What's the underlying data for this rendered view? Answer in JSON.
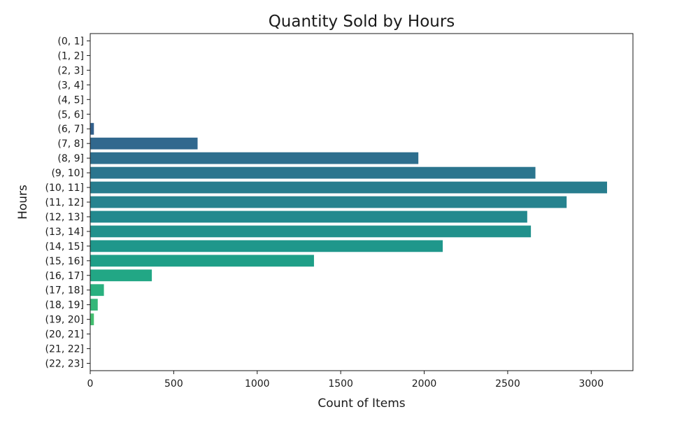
{
  "chart_data": {
    "type": "bar",
    "orientation": "horizontal",
    "title": "Quantity Sold by Hours",
    "xlabel": "Count of Items",
    "ylabel": "Hours",
    "xlim": [
      0,
      3250
    ],
    "xticks": [
      0,
      500,
      1000,
      1500,
      2000,
      2500,
      3000
    ],
    "grid": false,
    "categories": [
      "(0, 1]",
      "(1, 2]",
      "(2, 3]",
      "(3, 4]",
      "(4, 5]",
      "(5, 6]",
      "(6, 7]",
      "(7, 8]",
      "(8, 9]",
      "(9, 10]",
      "(10, 11]",
      "(11, 12]",
      "(12, 13]",
      "(13, 14]",
      "(14, 15]",
      "(15, 16]",
      "(16, 17]",
      "(17, 18]",
      "(18, 19]",
      "(19, 20]",
      "(20, 21]",
      "(21, 22]",
      "(22, 23]"
    ],
    "values": [
      0,
      0,
      0,
      0,
      0,
      0,
      22,
      643,
      1965,
      2666,
      3095,
      2853,
      2617,
      2639,
      2111,
      1340,
      369,
      82,
      45,
      22,
      0,
      0,
      0
    ],
    "colors": [
      "#472d7b",
      "#453781",
      "#423f85",
      "#3f4788",
      "#3b518b",
      "#375a8c",
      "#34618d",
      "#31688e",
      "#2e6f8e",
      "#2b758e",
      "#287d8e",
      "#26838f",
      "#23898e",
      "#21918c",
      "#1f978b",
      "#1f9f88",
      "#22a785",
      "#2ab07f",
      "#35b779",
      "#44bf70",
      "#58c765",
      "#6ece58",
      "#86d549"
    ]
  }
}
